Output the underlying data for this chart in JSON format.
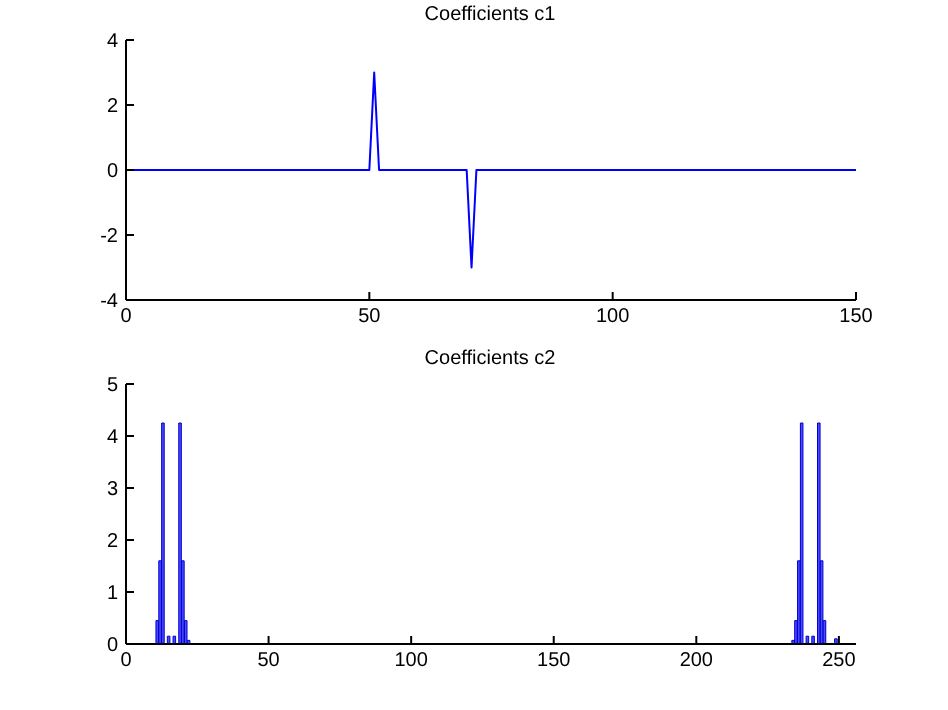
{
  "chart_data": [
    {
      "type": "line",
      "title": "Coefficients c1",
      "x": [
        1,
        50,
        51,
        52,
        70,
        71,
        72,
        150
      ],
      "values": [
        0,
        0,
        3,
        0,
        0,
        -3,
        0,
        0
      ],
      "color": "#0000ff",
      "xlim": [
        0,
        150
      ],
      "ylim": [
        -4,
        4
      ],
      "xticks": [
        0,
        50,
        100,
        150
      ],
      "yticks": [
        -4,
        -2,
        0,
        2,
        4
      ],
      "grid": false,
      "legend": false,
      "marker": "none",
      "line_style": "solid"
    },
    {
      "type": "bar",
      "title": "Coefficients c2",
      "x": [
        11,
        12,
        13,
        15,
        17,
        19,
        20,
        21,
        22,
        234,
        235,
        236,
        237,
        239,
        241,
        243,
        244,
        245,
        249
      ],
      "values": [
        0.45,
        1.6,
        4.25,
        0.15,
        0.15,
        4.25,
        1.6,
        0.45,
        0.07,
        0.07,
        0.45,
        1.6,
        4.25,
        0.15,
        0.15,
        4.25,
        1.6,
        0.45,
        0.1
      ],
      "color": "#4a4aff",
      "xlim": [
        0,
        256
      ],
      "ylim": [
        0,
        5
      ],
      "xticks": [
        0,
        50,
        100,
        150,
        200,
        250
      ],
      "yticks": [
        0,
        1,
        2,
        3,
        4,
        5
      ],
      "grid": false,
      "legend": false
    }
  ]
}
